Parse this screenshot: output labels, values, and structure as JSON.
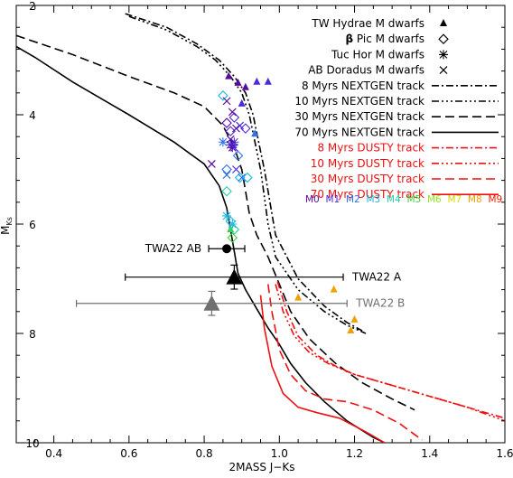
{
  "chart_data": {
    "type": "scatter",
    "xlabel": "2MASS J−Ks",
    "ylabel_main": "M",
    "ylabel_sub": "Ks",
    "xlim": [
      0.3,
      1.6
    ],
    "ylim": [
      10,
      2
    ],
    "x_ticks": [
      0.4,
      0.6,
      0.8,
      1.0,
      1.2,
      1.4,
      1.6
    ],
    "x_tick_labels": [
      "0.4",
      "0.6",
      "0.8",
      "1.0",
      "1.2",
      "1.4",
      "1.6"
    ],
    "y_ticks": [
      2,
      4,
      6,
      8,
      10
    ],
    "y_tick_labels": [
      "2",
      "4",
      "6",
      "8",
      "10"
    ],
    "grid": false,
    "legend_position": "top-right",
    "legend": [
      {
        "label": "TW Hydrae M dwarfs",
        "marker": "filled-triangle"
      },
      {
        "label_prefix": "β",
        "label": " Pic M dwarfs",
        "marker": "diamond"
      },
      {
        "label": "Tuc Hor M dwarfs",
        "marker": "asterisk"
      },
      {
        "label": "AB Doradus M dwarfs",
        "marker": "cross"
      },
      {
        "label": "8 Myrs NEXTGEN track",
        "color": "#000000",
        "dash": "8,3,2,3"
      },
      {
        "label": "10 Myrs NEXTGEN track",
        "color": "#000000",
        "dash": "8,3,2,3,2,3,2,3"
      },
      {
        "label": "30 Myrs NEXTGEN track",
        "color": "#000000",
        "dash": "10,5"
      },
      {
        "label": "70 Myrs NEXTGEN track",
        "color": "#000000",
        "dash": ""
      },
      {
        "label": "8 Myrs DUSTY track",
        "color": "#ee1111",
        "dash": "8,3,2,3"
      },
      {
        "label": "10 Myrs DUSTY track",
        "color": "#ee1111",
        "dash": "8,3,2,3,2,3,2,3"
      },
      {
        "label": "30 Myrs DUSTY track",
        "color": "#ee1111",
        "dash": "10,5"
      },
      {
        "label": "70 Myrs DUSTY track",
        "color": "#ee1111",
        "dash": ""
      }
    ],
    "spectral_types": [
      {
        "label": "M0",
        "color": "#5a0aa0"
      },
      {
        "label": "M1",
        "color": "#4b2bd6"
      },
      {
        "label": "M2",
        "color": "#2f73ea"
      },
      {
        "label": "M3",
        "color": "#20b8e0"
      },
      {
        "label": "M4",
        "color": "#22d6a8"
      },
      {
        "label": "M5",
        "color": "#3ad23a"
      },
      {
        "label": "M6",
        "color": "#8ee81a"
      },
      {
        "label": "M7",
        "color": "#d8d800"
      },
      {
        "label": "M8",
        "color": "#f0a000"
      },
      {
        "label": "M9",
        "color": "#ee2200"
      }
    ],
    "series": [
      {
        "track": "NEXTGEN",
        "age_myr": 8,
        "color": "#000000",
        "dash": "8,3,2,3",
        "x": [
          0.59,
          0.7,
          0.78,
          0.84,
          0.88,
          0.91,
          0.93,
          0.945,
          0.96,
          0.975,
          0.99,
          1.05,
          1.12,
          1.18,
          1.22
        ],
        "y": [
          2.15,
          2.4,
          2.7,
          3.0,
          3.3,
          3.6,
          4.0,
          4.5,
          5.0,
          5.6,
          6.2,
          7.0,
          7.5,
          7.8,
          7.95
        ]
      },
      {
        "track": "NEXTGEN",
        "age_myr": 10,
        "color": "#000000",
        "dash": "8,3,2,3,2,3,2,3",
        "x": [
          0.6,
          0.7,
          0.78,
          0.83,
          0.87,
          0.9,
          0.92,
          0.935,
          0.95,
          0.96,
          0.97,
          0.99,
          1.05,
          1.12,
          1.18,
          1.23
        ],
        "y": [
          2.2,
          2.45,
          2.75,
          3.0,
          3.3,
          3.6,
          4.0,
          4.5,
          5.0,
          5.5,
          6.0,
          6.6,
          7.2,
          7.6,
          7.85,
          8.0
        ]
      },
      {
        "track": "NEXTGEN",
        "age_myr": 30,
        "color": "#000000",
        "dash": "10,5",
        "x": [
          0.3,
          0.45,
          0.6,
          0.72,
          0.8,
          0.85,
          0.88,
          0.9,
          0.91,
          0.92,
          0.94,
          0.97,
          1.0,
          1.03,
          1.08,
          1.15,
          1.22,
          1.3,
          1.36
        ],
        "y": [
          2.55,
          2.9,
          3.3,
          3.6,
          3.85,
          4.2,
          4.6,
          5.0,
          5.4,
          5.8,
          6.2,
          6.6,
          7.1,
          7.6,
          8.1,
          8.55,
          8.9,
          9.2,
          9.4
        ]
      },
      {
        "track": "NEXTGEN",
        "age_myr": 70,
        "color": "#000000",
        "dash": "",
        "x": [
          0.3,
          0.35,
          0.45,
          0.6,
          0.72,
          0.8,
          0.84,
          0.86,
          0.87,
          0.88,
          0.89,
          0.91,
          0.94,
          0.97,
          1.0,
          1.03,
          1.07,
          1.12,
          1.18,
          1.25,
          1.28
        ],
        "y": [
          2.75,
          2.95,
          3.4,
          4.0,
          4.5,
          4.9,
          5.3,
          5.7,
          6.1,
          6.5,
          6.9,
          7.2,
          7.55,
          7.9,
          8.2,
          8.55,
          8.9,
          9.25,
          9.6,
          9.9,
          10.0
        ]
      },
      {
        "track": "DUSTY",
        "age_myr": 8,
        "color": "#ee1111",
        "dash": "8,3,2,3",
        "x": [
          0.995,
          1.02,
          1.05,
          1.1,
          1.15,
          1.2,
          1.3,
          1.4,
          1.5,
          1.6
        ],
        "y": [
          7.05,
          7.6,
          8.05,
          8.4,
          8.6,
          8.75,
          8.95,
          9.15,
          9.35,
          9.55
        ]
      },
      {
        "track": "DUSTY",
        "age_myr": 10,
        "color": "#ee1111",
        "dash": "8,3,2,3,2,3,2,3",
        "x": [
          0.99,
          1.01,
          1.04,
          1.08,
          1.13,
          1.2,
          1.3,
          1.4,
          1.5,
          1.6
        ],
        "y": [
          7.1,
          7.6,
          8.05,
          8.35,
          8.55,
          8.75,
          8.95,
          9.15,
          9.35,
          9.6
        ]
      },
      {
        "track": "DUSTY",
        "age_myr": 30,
        "color": "#ee1111",
        "dash": "10,5",
        "x": [
          0.97,
          0.98,
          1.0,
          1.03,
          1.07,
          1.12,
          1.18,
          1.25,
          1.32,
          1.38
        ],
        "y": [
          7.1,
          7.6,
          8.3,
          8.75,
          9.05,
          9.2,
          9.25,
          9.4,
          9.65,
          9.95
        ]
      },
      {
        "track": "DUSTY",
        "age_myr": 70,
        "color": "#ee1111",
        "dash": "",
        "x": [
          0.95,
          0.96,
          0.98,
          1.01,
          1.05,
          1.1,
          1.16,
          1.23,
          1.28
        ],
        "y": [
          7.3,
          7.9,
          8.6,
          9.1,
          9.35,
          9.45,
          9.55,
          9.8,
          10.0
        ]
      }
    ],
    "points": [
      {
        "group": "TW Hydrae",
        "marker": "filled-triangle",
        "x": 0.865,
        "y": 3.3,
        "color": "#5a0aa0"
      },
      {
        "group": "TW Hydrae",
        "marker": "filled-triangle",
        "x": 0.89,
        "y": 3.42,
        "color": "#5a0aa0"
      },
      {
        "group": "TW Hydrae",
        "marker": "filled-triangle",
        "x": 0.91,
        "y": 3.5,
        "color": "#5a0aa0"
      },
      {
        "group": "TW Hydrae",
        "marker": "filled-triangle",
        "x": 0.94,
        "y": 3.4,
        "color": "#4b2bd6"
      },
      {
        "group": "TW Hydrae",
        "marker": "filled-triangle",
        "x": 0.97,
        "y": 3.4,
        "color": "#4b2bd6"
      },
      {
        "group": "TW Hydrae",
        "marker": "filled-triangle",
        "x": 0.9,
        "y": 3.8,
        "color": "#4b2bd6"
      },
      {
        "group": "TW Hydrae",
        "marker": "filled-triangle",
        "x": 0.935,
        "y": 4.35,
        "color": "#2f73ea"
      },
      {
        "group": "TW Hydrae",
        "marker": "filled-triangle",
        "x": 0.87,
        "y": 6.1,
        "color": "#3ad23a"
      },
      {
        "group": "TW Hydrae",
        "marker": "filled-triangle",
        "x": 1.05,
        "y": 7.35,
        "color": "#f0a000"
      },
      {
        "group": "TW Hydrae",
        "marker": "filled-triangle",
        "x": 1.145,
        "y": 7.2,
        "color": "#f0a000"
      },
      {
        "group": "TW Hydrae",
        "marker": "filled-triangle",
        "x": 1.2,
        "y": 7.75,
        "color": "#f0a000"
      },
      {
        "group": "TW Hydrae",
        "marker": "filled-triangle",
        "x": 1.19,
        "y": 7.95,
        "color": "#f0a000"
      },
      {
        "group": "Beta Pic",
        "marker": "diamond",
        "x": 0.85,
        "y": 3.65,
        "color": "#20b8e0"
      },
      {
        "group": "Beta Pic",
        "marker": "diamond",
        "x": 0.86,
        "y": 4.15,
        "color": "#5a0aa0"
      },
      {
        "group": "Beta Pic",
        "marker": "diamond",
        "x": 0.87,
        "y": 4.3,
        "color": "#4b2bd6"
      },
      {
        "group": "Beta Pic",
        "marker": "diamond",
        "x": 0.88,
        "y": 4.05,
        "color": "#4b2bd6"
      },
      {
        "group": "Beta Pic",
        "marker": "diamond",
        "x": 0.91,
        "y": 4.25,
        "color": "#4b2bd6"
      },
      {
        "group": "Beta Pic",
        "marker": "diamond",
        "x": 0.89,
        "y": 4.75,
        "color": "#2f73ea"
      },
      {
        "group": "Beta Pic",
        "marker": "diamond",
        "x": 0.86,
        "y": 5.0,
        "color": "#2f73ea"
      },
      {
        "group": "Beta Pic",
        "marker": "diamond",
        "x": 0.895,
        "y": 5.15,
        "color": "#20b8e0"
      },
      {
        "group": "Beta Pic",
        "marker": "diamond",
        "x": 0.915,
        "y": 5.15,
        "color": "#20b8e0"
      },
      {
        "group": "Beta Pic",
        "marker": "diamond",
        "x": 0.86,
        "y": 5.4,
        "color": "#22d6a8"
      },
      {
        "group": "Beta Pic",
        "marker": "diamond",
        "x": 0.87,
        "y": 5.95,
        "color": "#20b8e0"
      },
      {
        "group": "Beta Pic",
        "marker": "diamond",
        "x": 0.88,
        "y": 6.1,
        "color": "#22d6a8"
      },
      {
        "group": "Beta Pic",
        "marker": "diamond",
        "x": 0.875,
        "y": 6.25,
        "color": "#3ad23a"
      },
      {
        "group": "Tuc Hor",
        "marker": "asterisk",
        "x": 0.85,
        "y": 4.5,
        "color": "#2f73ea"
      },
      {
        "group": "Tuc Hor",
        "marker": "asterisk",
        "x": 0.87,
        "y": 4.55,
        "color": "#4b2bd6"
      },
      {
        "group": "Tuc Hor",
        "marker": "asterisk",
        "x": 0.88,
        "y": 4.5,
        "color": "#4b2bd6"
      },
      {
        "group": "Tuc Hor",
        "marker": "asterisk",
        "x": 0.875,
        "y": 4.6,
        "color": "#5a0aa0"
      },
      {
        "group": "Tuc Hor",
        "marker": "asterisk",
        "x": 0.86,
        "y": 5.85,
        "color": "#20b8e0"
      },
      {
        "group": "Tuc Hor",
        "marker": "asterisk",
        "x": 0.875,
        "y": 6.0,
        "color": "#20b8e0"
      },
      {
        "group": "AB Doradus",
        "marker": "cross",
        "x": 0.82,
        "y": 4.9,
        "color": "#5a0aa0"
      },
      {
        "group": "AB Doradus",
        "marker": "cross",
        "x": 0.86,
        "y": 3.75,
        "color": "#5a0aa0"
      },
      {
        "group": "AB Doradus",
        "marker": "cross",
        "x": 0.875,
        "y": 3.95,
        "color": "#5a0aa0"
      },
      {
        "group": "AB Doradus",
        "marker": "cross",
        "x": 0.885,
        "y": 4.25,
        "color": "#5a0aa0"
      },
      {
        "group": "AB Doradus",
        "marker": "cross",
        "x": 0.895,
        "y": 4.2,
        "color": "#4b2bd6"
      },
      {
        "group": "AB Doradus",
        "marker": "cross",
        "x": 0.87,
        "y": 4.45,
        "color": "#5a0aa0"
      },
      {
        "group": "AB Doradus",
        "marker": "cross",
        "x": 0.88,
        "y": 4.6,
        "color": "#4b2bd6"
      },
      {
        "group": "AB Doradus",
        "marker": "cross",
        "x": 0.885,
        "y": 5.0,
        "color": "#4b2bd6"
      },
      {
        "group": "AB Doradus",
        "marker": "cross",
        "x": 0.86,
        "y": 5.1,
        "color": "#2f73ea"
      },
      {
        "group": "AB Doradus",
        "marker": "cross",
        "x": 0.9,
        "y": 5.15,
        "color": "#2f73ea"
      }
    ],
    "annotated_points": [
      {
        "label": "TWA22 AB",
        "x": 0.86,
        "y": 6.45,
        "xerr": 0.048,
        "marker": "filled-circle",
        "color": "#000000",
        "label_color": "#000000",
        "label_side": "left"
      },
      {
        "label": "TWA22 A",
        "x": 0.88,
        "y": 6.97,
        "xerr": 0.29,
        "yerr": 0.22,
        "marker": "filled-triangle-large",
        "color": "#000000",
        "label_color": "#000000",
        "label_side": "right"
      },
      {
        "label": "TWA22 B",
        "x": 0.82,
        "y": 7.45,
        "xerr": 0.36,
        "yerr": 0.22,
        "marker": "filled-triangle-large",
        "color": "#707070",
        "label_color": "#707070",
        "label_side": "right"
      }
    ]
  }
}
